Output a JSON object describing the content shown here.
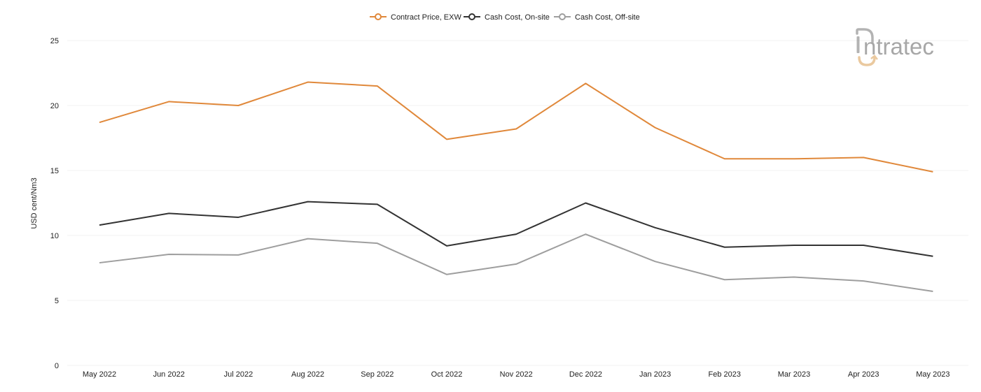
{
  "chart_data": {
    "type": "line",
    "title": "",
    "xlabel": "",
    "ylabel": "USD cent/Nm3",
    "ylim": [
      0,
      25
    ],
    "yticks": [
      0,
      5,
      10,
      15,
      20,
      25
    ],
    "grid": true,
    "legend_position": "top-center",
    "categories": [
      "May 2022",
      "Jun 2022",
      "Jul 2022",
      "Aug 2022",
      "Sep 2022",
      "Oct 2022",
      "Nov 2022",
      "Dec 2022",
      "Jan 2023",
      "Feb 2023",
      "Mar 2023",
      "Apr 2023",
      "May 2023"
    ],
    "series": [
      {
        "name": "Contract Price, EXW",
        "color": "#e0883a",
        "values": [
          18.7,
          20.3,
          20.0,
          21.8,
          21.5,
          17.4,
          18.2,
          21.7,
          18.3,
          15.9,
          15.9,
          16.0,
          14.9
        ]
      },
      {
        "name": "Cash Cost, On-site",
        "color": "#333333",
        "values": [
          10.8,
          11.7,
          11.4,
          12.6,
          12.4,
          9.2,
          10.1,
          12.5,
          10.6,
          9.1,
          9.25,
          9.25,
          8.4
        ]
      },
      {
        "name": "Cash Cost, Off-site",
        "color": "#9e9e9e",
        "values": [
          7.9,
          8.55,
          8.5,
          9.75,
          9.4,
          7.0,
          7.8,
          10.1,
          8.0,
          6.6,
          6.8,
          6.5,
          5.7
        ]
      }
    ]
  },
  "logo": {
    "text": "ntratec"
  }
}
